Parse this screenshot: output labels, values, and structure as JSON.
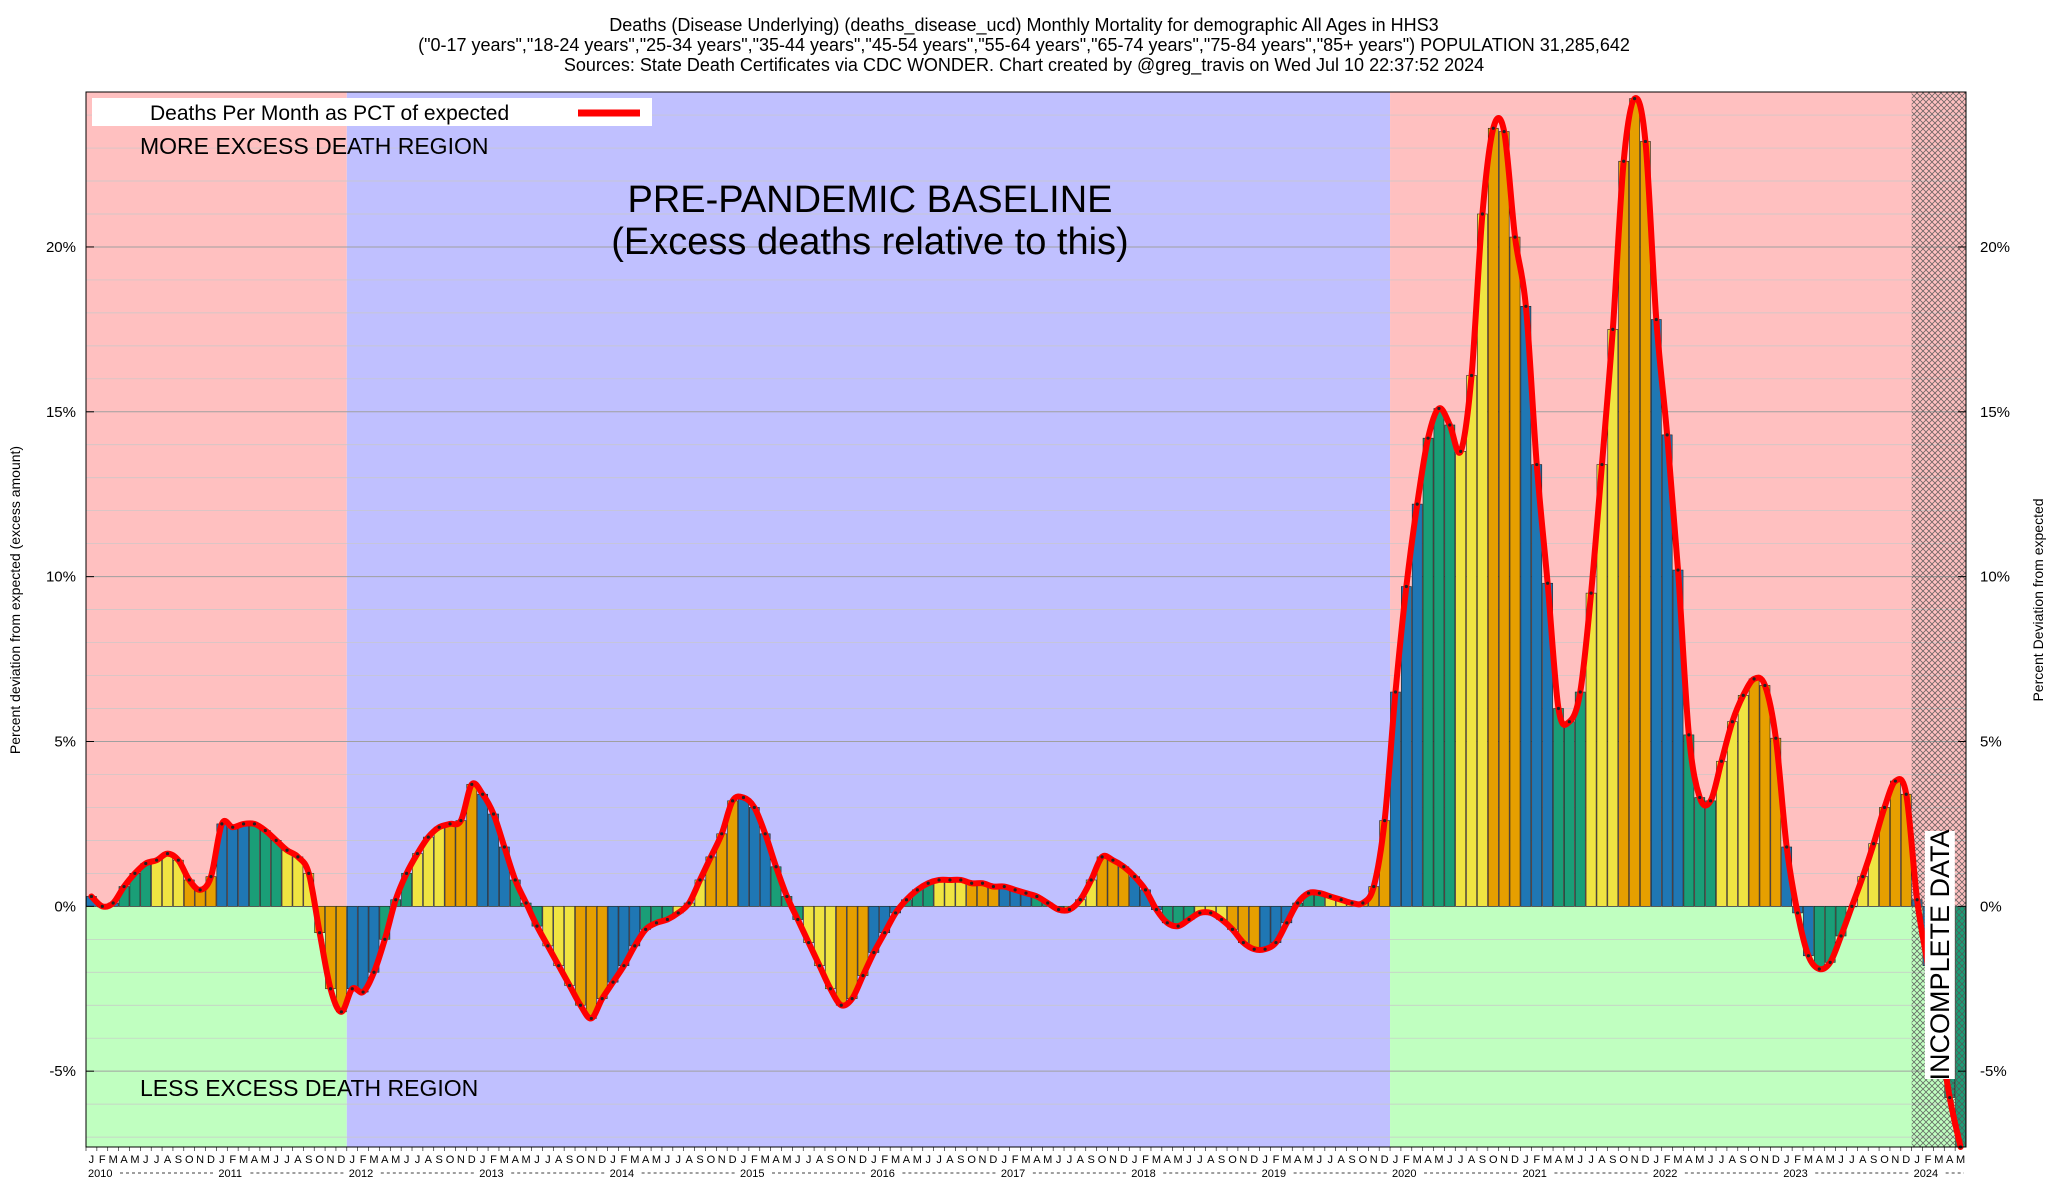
{
  "title": {
    "line1": "Deaths (Disease Underlying) (deaths_disease_ucd) Monthly Mortality for demographic All Ages in HHS3",
    "line2": "(\"0-17 years\",\"18-24 years\",\"25-34 years\",\"35-44 years\",\"45-54 years\",\"55-64 years\",\"65-74 years\",\"75-84 years\",\"85+ years\") POPULATION 31,285,642",
    "line3": "Sources: State Death Certificates via CDC WONDER.              Chart created by @greg_travis on Wed Jul 10 22:37:52 2024"
  },
  "annotations": {
    "more_excess": "MORE EXCESS DEATH REGION",
    "less_excess": "LESS EXCESS DEATH REGION",
    "baseline_line1": "PRE-PANDEMIC BASELINE",
    "baseline_line2": "(Excess deaths relative to this)",
    "incomplete": "INCOMPLETE DATA"
  },
  "colors": {
    "more_region": "#ffc0c0",
    "less_region": "#c0ffc0",
    "baseline_region": "#c0c0ff",
    "line": "#ff0000",
    "bar_palette": [
      "#1f77b4",
      "#1a9e77",
      "#f0e442",
      "#e69f00"
    ]
  },
  "chart_data": {
    "type": "bar",
    "title": "Deaths (Disease Underlying) (deaths_disease_ucd) Monthly Mortality for demographic All Ages in HHS3",
    "ylabel_left": "Percent deviation from expected (excess amount)",
    "ylabel_right": "Percent Deviation from expected",
    "ylim": [
      -7.3,
      24.7
    ],
    "yticks": [
      -5,
      0,
      5,
      10,
      15,
      20
    ],
    "ytick_labels": [
      "-5%",
      "0%",
      "5%",
      "10%",
      "15%",
      "20%"
    ],
    "month_letters": [
      "J",
      "F",
      "M",
      "A",
      "M",
      "J",
      "J",
      "A",
      "S",
      "O",
      "N",
      "D"
    ],
    "years": [
      "2010",
      "2011",
      "2012",
      "2013",
      "2014",
      "2015",
      "2016",
      "2017",
      "2018",
      "2019",
      "2020",
      "2021",
      "2022",
      "2023",
      "2024"
    ],
    "last_year_month_letters": [
      "J",
      "F",
      "M",
      "A",
      "M"
    ],
    "x_start": "2010-01",
    "baseline_period": [
      "2012-01",
      "2019-12"
    ],
    "incomplete_from": "2024-01",
    "legend": {
      "label": "Deaths Per Month as PCT of expected",
      "placement": "top-left"
    },
    "series": [
      {
        "name": "Deaths Per Month as PCT of expected",
        "values": [
          0.3,
          0.0,
          0.1,
          0.6,
          1.0,
          1.3,
          1.4,
          1.6,
          1.4,
          0.8,
          0.5,
          0.9,
          2.5,
          2.4,
          2.5,
          2.5,
          2.3,
          2.0,
          1.7,
          1.5,
          1.0,
          -0.8,
          -2.5,
          -3.2,
          -2.5,
          -2.6,
          -2.0,
          -1.0,
          0.2,
          1.0,
          1.6,
          2.1,
          2.4,
          2.5,
          2.6,
          3.7,
          3.4,
          2.8,
          1.8,
          0.8,
          0.1,
          -0.6,
          -1.2,
          -1.8,
          -2.4,
          -3.0,
          -3.4,
          -2.8,
          -2.3,
          -1.8,
          -1.2,
          -0.7,
          -0.5,
          -0.4,
          -0.2,
          0.1,
          0.8,
          1.5,
          2.2,
          3.2,
          3.3,
          3.0,
          2.2,
          1.2,
          0.3,
          -0.4,
          -1.1,
          -1.8,
          -2.5,
          -3.0,
          -2.8,
          -2.1,
          -1.4,
          -0.8,
          -0.2,
          0.2,
          0.5,
          0.7,
          0.8,
          0.8,
          0.8,
          0.7,
          0.7,
          0.6,
          0.6,
          0.5,
          0.4,
          0.3,
          0.1,
          -0.1,
          -0.1,
          0.2,
          0.8,
          1.5,
          1.4,
          1.2,
          0.9,
          0.5,
          -0.1,
          -0.5,
          -0.6,
          -0.4,
          -0.2,
          -0.2,
          -0.4,
          -0.7,
          -1.1,
          -1.3,
          -1.3,
          -1.1,
          -0.5,
          0.1,
          0.4,
          0.4,
          0.3,
          0.2,
          0.1,
          0.1,
          0.6,
          2.6,
          6.5,
          9.7,
          12.2,
          14.2,
          15.1,
          14.6,
          13.8,
          16.1,
          21.0,
          23.6,
          23.5,
          20.3,
          18.2,
          13.4,
          9.8,
          6.0,
          5.6,
          6.5,
          9.5,
          13.4,
          17.5,
          22.6,
          24.5,
          23.2,
          17.8,
          14.3,
          10.2,
          5.2,
          3.3,
          3.2,
          4.4,
          5.6,
          6.4,
          6.9,
          6.7,
          5.1,
          1.8,
          -0.2,
          -1.5,
          -1.9,
          -1.7,
          -0.9,
          0.0,
          0.9,
          1.9,
          3.0,
          3.8,
          3.4,
          0.2,
          -1.8,
          -3.7,
          -5.8,
          -7.3
        ]
      }
    ]
  }
}
